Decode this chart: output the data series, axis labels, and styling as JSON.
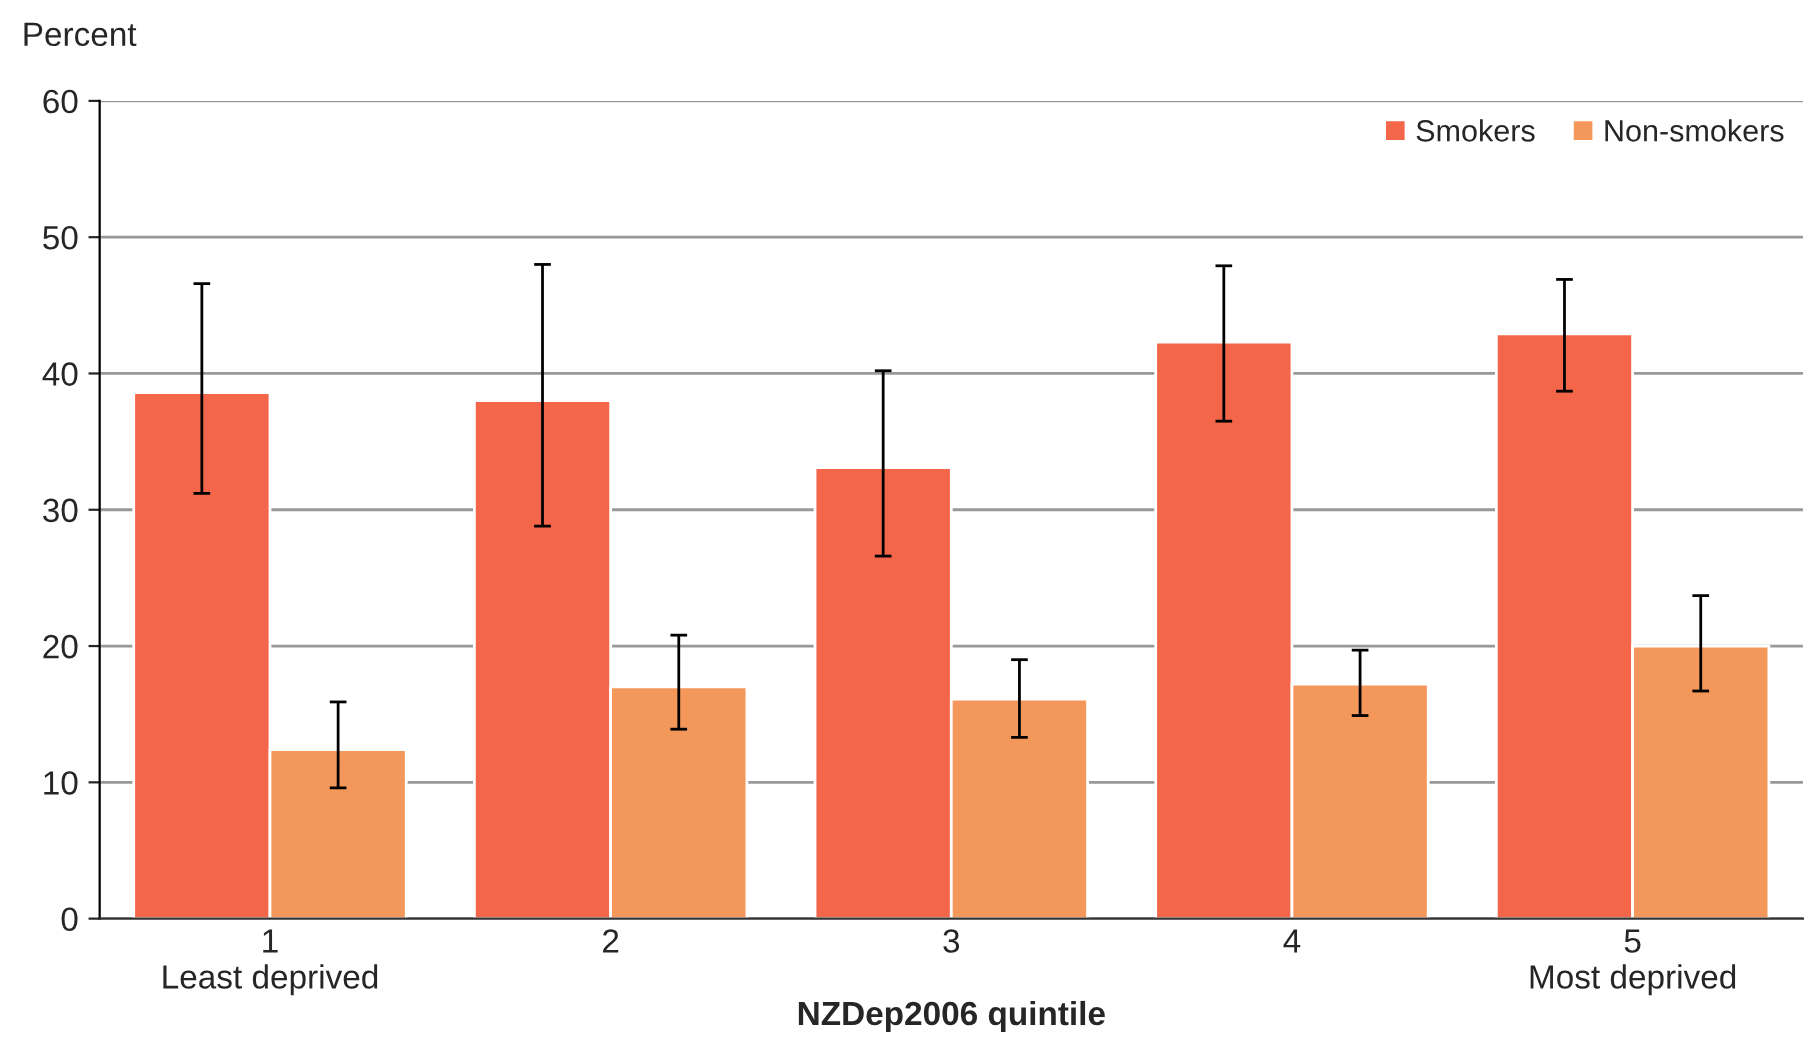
{
  "chart_data": {
    "type": "bar",
    "ylabel": "Percent",
    "xlabel": "NZDep2006 quintile",
    "categories": [
      "1\nLeast deprived",
      "2",
      "3",
      "4",
      "5\nMost deprived"
    ],
    "series": [
      {
        "name": "Smokers",
        "color": "#f4664a",
        "values": [
          38.6,
          38.0,
          33.1,
          42.3,
          42.9
        ],
        "errors": [
          [
            31.2,
            46.6
          ],
          [
            28.8,
            48.0
          ],
          [
            26.6,
            40.2
          ],
          [
            36.5,
            47.9
          ],
          [
            38.7,
            46.9
          ]
        ]
      },
      {
        "name": "Non-smokers",
        "color": "#f4975a",
        "values": [
          12.4,
          17.0,
          16.1,
          17.2,
          20.0
        ],
        "errors": [
          [
            9.6,
            15.9
          ],
          [
            13.9,
            20.8
          ],
          [
            13.3,
            19.0
          ],
          [
            14.9,
            19.7
          ],
          [
            16.7,
            23.7
          ]
        ]
      }
    ],
    "ylim": [
      0,
      60
    ],
    "yticks": [
      0,
      10,
      20,
      30,
      40,
      50,
      60
    ],
    "grid": "y",
    "legend": "top right"
  }
}
